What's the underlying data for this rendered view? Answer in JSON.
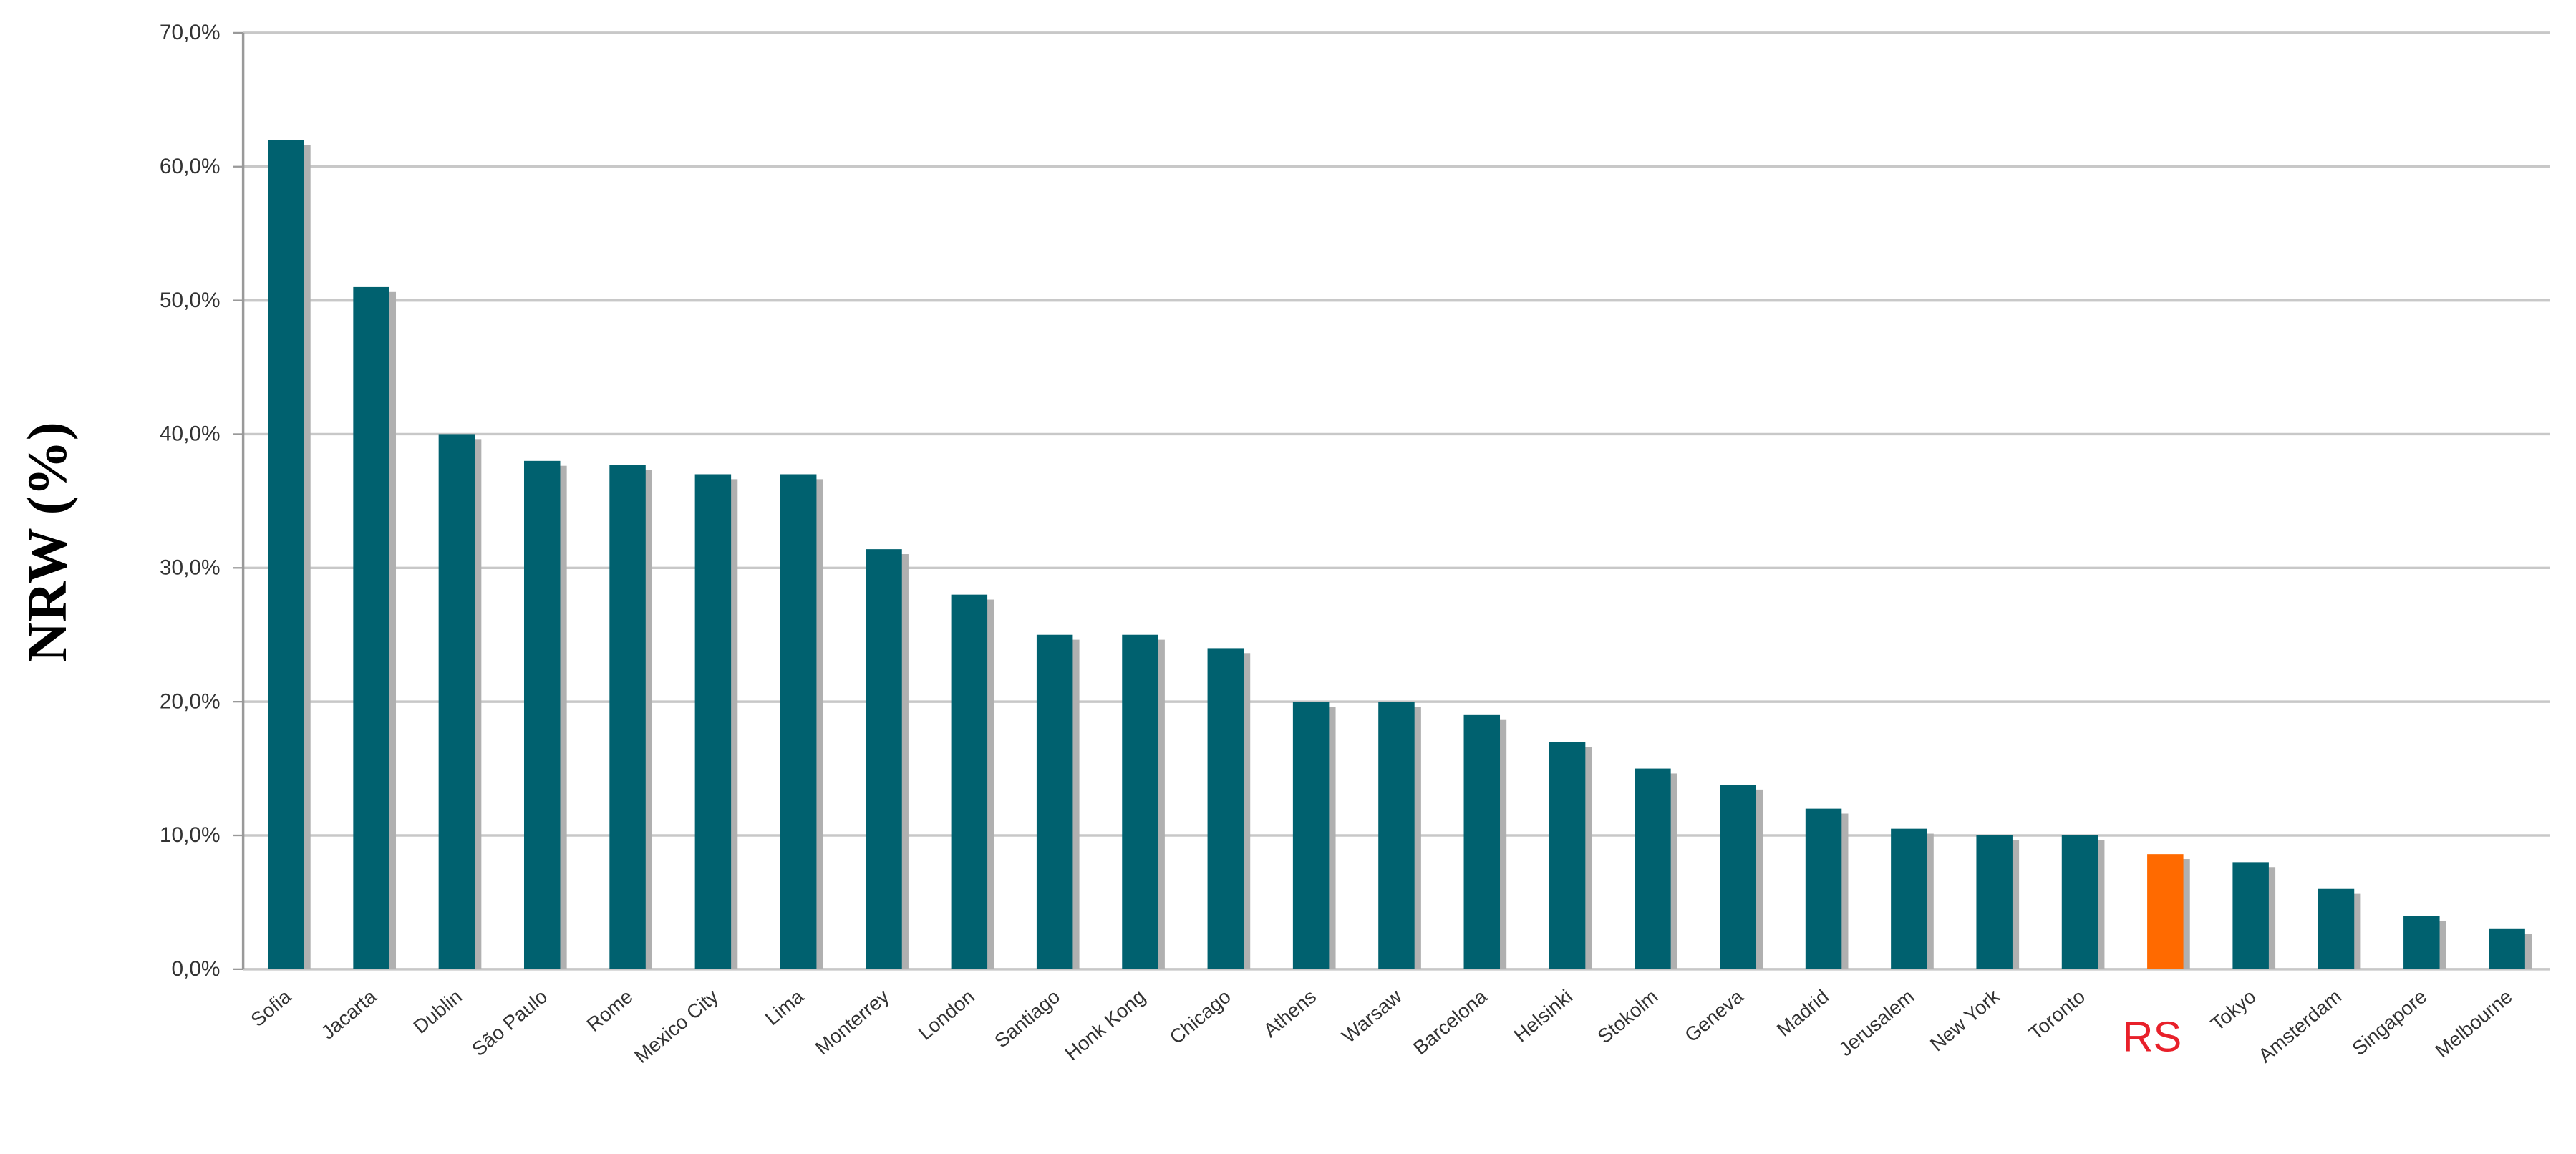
{
  "chart_data": {
    "type": "bar",
    "y_label": "NRW (%)",
    "categories": [
      "Sofia",
      "Jacarta",
      "Dublin",
      "São Paulo",
      "Rome",
      "Mexico City",
      "Lima",
      "Monterrey",
      "London",
      "Santiago",
      "Honk Kong",
      "Chicago",
      "Athens",
      "Warsaw",
      "Barcelona",
      "Helsinki",
      "Stokolm",
      "Geneva",
      "Madrid",
      "Jerusalem",
      "New York",
      "Toronto",
      "RS",
      "Tokyo",
      "Amsterdam",
      "Singapore",
      "Melbourne"
    ],
    "values": [
      62,
      51,
      40,
      38,
      37.7,
      37,
      37,
      31.4,
      28,
      25,
      25,
      24,
      20,
      20,
      19,
      17,
      15,
      13.8,
      12,
      10.5,
      10,
      10,
      8.6,
      8,
      6,
      4,
      3
    ],
    "colors": [
      "#00616f",
      "#00616f",
      "#00616f",
      "#00616f",
      "#00616f",
      "#00616f",
      "#00616f",
      "#00616f",
      "#00616f",
      "#00616f",
      "#00616f",
      "#00616f",
      "#00616f",
      "#00616f",
      "#00616f",
      "#00616f",
      "#00616f",
      "#00616f",
      "#00616f",
      "#00616f",
      "#00616f",
      "#00616f",
      "#ff6a00",
      "#00616f",
      "#00616f",
      "#00616f",
      "#00616f"
    ],
    "label_colors": [
      "#333333",
      "#333333",
      "#333333",
      "#333333",
      "#333333",
      "#333333",
      "#333333",
      "#333333",
      "#333333",
      "#333333",
      "#333333",
      "#333333",
      "#333333",
      "#333333",
      "#333333",
      "#333333",
      "#333333",
      "#333333",
      "#333333",
      "#333333",
      "#333333",
      "#333333",
      "#e8202a",
      "#333333",
      "#333333",
      "#333333",
      "#333333"
    ],
    "ylim": [
      0,
      70
    ],
    "yticks": [
      {
        "value": 0,
        "label": "0,0%"
      },
      {
        "value": 10,
        "label": "10,0%"
      },
      {
        "value": 20,
        "label": "20,0%"
      },
      {
        "value": 30,
        "label": "30,0%"
      },
      {
        "value": 40,
        "label": "40,0%"
      },
      {
        "value": 50,
        "label": "50,0%"
      },
      {
        "value": 60,
        "label": "60,0%"
      },
      {
        "value": 70,
        "label": "70,0%"
      }
    ],
    "grid": true
  }
}
